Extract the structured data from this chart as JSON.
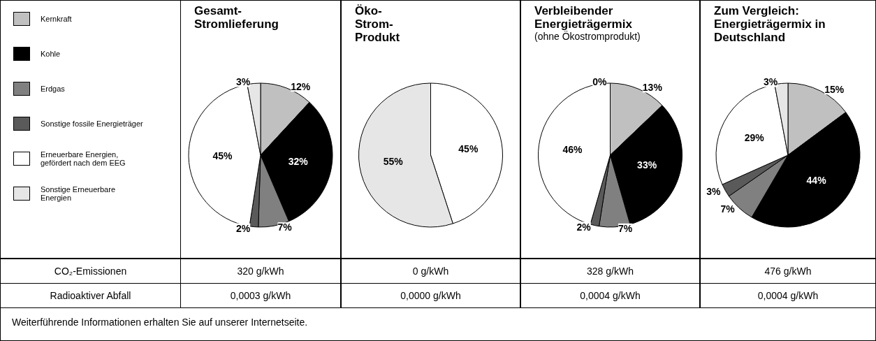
{
  "chart_data": [
    {
      "type": "pie",
      "title": "Gesamt-Stromlieferung",
      "categories": [
        "Kernkraft",
        "Kohle",
        "Erdgas",
        "Sonstige fossile Energieträger",
        "Erneuerbare Energien, gefördert nach dem EEG",
        "Sonstige Erneuerbare Energien"
      ],
      "values": [
        12,
        32,
        7,
        2,
        45,
        3
      ],
      "colors": [
        "#c0c0c0",
        "#000000",
        "#808080",
        "#5a5a5a",
        "#ffffff",
        "#e6e6e6"
      ],
      "value_labels": [
        "12%",
        "32%",
        "7%",
        "2%",
        "45%",
        "3%"
      ],
      "legend": "left",
      "annotations": [
        "320 g/kWh",
        "0,0003 g/kWh"
      ]
    },
    {
      "type": "pie",
      "title": "Öko-Strom-Produkt",
      "categories": [
        null,
        null
      ],
      "values": [
        45,
        55
      ],
      "colors": [
        "#ffffff",
        "#e6e6e6"
      ],
      "value_labels": [
        "45%",
        "55%"
      ],
      "annotations": [
        "0 g/kWh",
        "0,0000 g/kWh"
      ]
    },
    {
      "type": "pie",
      "title": "Verbleibender Energieträgermix",
      "subtitle": "(ohne Ökostromprodukt)",
      "categories": [
        null,
        null,
        null,
        null,
        null,
        null
      ],
      "values": [
        13,
        33,
        7,
        2,
        46,
        0
      ],
      "colors": [
        "#c0c0c0",
        "#000000",
        "#808080",
        "#5a5a5a",
        "#ffffff",
        "#e6e6e6"
      ],
      "value_labels": [
        "13%",
        "33%",
        "7%",
        "2%",
        "46%",
        "0%"
      ],
      "annotations": [
        "328 g/kWh",
        "0,0004 g/kWh"
      ]
    },
    {
      "type": "pie",
      "title": "Zum Vergleich: Energieträgermix in Deutschland",
      "categories": [
        null,
        null,
        null,
        null,
        null,
        null
      ],
      "values": [
        15,
        44,
        7,
        3,
        29,
        3
      ],
      "colors": [
        "#c0c0c0",
        "#000000",
        "#808080",
        "#5a5a5a",
        "#ffffff",
        "#e6e6e6"
      ],
      "value_labels": [
        "15%",
        "44%",
        "7%",
        "3%",
        "29%",
        "3%"
      ],
      "annotations": [
        "476 g/kWh",
        "0,0004 g/kWh"
      ]
    },
    {
      "type": "other",
      "annotations": [
        "CO₂-Emissionen",
        "Radioaktiver Abfall",
        "Weiterführende Informationen erhalten Sie auf unserer Internetseite."
      ]
    }
  ]
}
